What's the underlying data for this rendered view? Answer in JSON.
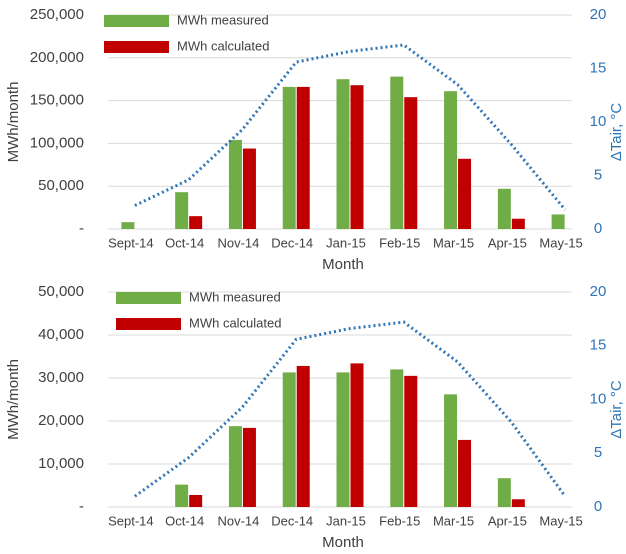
{
  "chart_data": [
    {
      "type": "bar",
      "xlabel": "Month",
      "ylabel": "MWh/month",
      "y2label": "ΔTair, °C",
      "categories": [
        "Sept-14",
        "Oct-14",
        "Nov-14",
        "Dec-14",
        "Jan-15",
        "Feb-15",
        "Mar-15",
        "Apr-15",
        "May-15"
      ],
      "series": [
        {
          "name": "MWh measured",
          "color": "#70ad47",
          "values": [
            8000,
            43000,
            104000,
            166000,
            175000,
            178000,
            161000,
            47000,
            17000
          ]
        },
        {
          "name": "MWh calculated",
          "color": "#c00000",
          "values": [
            null,
            15000,
            94000,
            166000,
            168000,
            154000,
            82000,
            12000,
            null
          ]
        },
        {
          "type": "line",
          "axis": "y2",
          "color": "#2e75b6",
          "style": "dotted",
          "values": [
            2.2,
            4.6,
            9.3,
            15.6,
            16.6,
            17.2,
            13.5,
            7.9,
            1.8
          ]
        }
      ],
      "ylim": [
        0,
        250000
      ],
      "yticks": [
        {
          "value": 0,
          "label": "-"
        },
        {
          "value": 50000,
          "label": "50,000"
        },
        {
          "value": 100000,
          "label": "100,000"
        },
        {
          "value": 150000,
          "label": "150,000"
        },
        {
          "value": 200000,
          "label": "200,000"
        },
        {
          "value": 250000,
          "label": "250,000"
        }
      ],
      "y2lim": [
        0,
        20
      ],
      "y2ticks": [
        0,
        5,
        10,
        15,
        20
      ],
      "grid": true,
      "legend": "upper left"
    },
    {
      "type": "bar",
      "xlabel": "Month",
      "ylabel": "MWh/month",
      "y2label": "ΔTair, °C",
      "categories": [
        "Sept-14",
        "Oct-14",
        "Nov-14",
        "Dec-14",
        "Jan-15",
        "Feb-15",
        "Mar-15",
        "Apr-15",
        "May-15"
      ],
      "series": [
        {
          "name": "MWh measured",
          "color": "#70ad47",
          "values": [
            null,
            5200,
            18800,
            31300,
            31300,
            32000,
            26200,
            6700,
            null
          ]
        },
        {
          "name": "MWh calculated",
          "color": "#c00000",
          "values": [
            null,
            2800,
            18400,
            32800,
            33400,
            30500,
            15600,
            1800,
            null
          ]
        },
        {
          "type": "line",
          "axis": "y2",
          "color": "#2e75b6",
          "style": "dotted",
          "values": [
            1.0,
            4.6,
            9.3,
            15.6,
            16.6,
            17.2,
            13.5,
            7.9,
            1.0
          ]
        }
      ],
      "ylim": [
        0,
        50000
      ],
      "yticks": [
        {
          "value": 0,
          "label": "-"
        },
        {
          "value": 10000,
          "label": "10,000"
        },
        {
          "value": 20000,
          "label": "20,000"
        },
        {
          "value": 30000,
          "label": "30,000"
        },
        {
          "value": 40000,
          "label": "40,000"
        },
        {
          "value": 50000,
          "label": "50,000"
        }
      ],
      "y2lim": [
        0,
        20
      ],
      "y2ticks": [
        0,
        5,
        10,
        15,
        20
      ],
      "grid": true,
      "legend": "upper left"
    }
  ]
}
